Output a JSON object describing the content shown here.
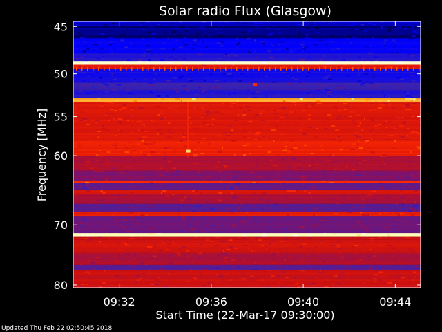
{
  "chart_data": {
    "type": "heatmap",
    "title": "Solar radio Flux (Glasgow)",
    "xlabel": "Start Time (22-Mar-17 09:30:00)",
    "ylabel": "Frequency [MHz]",
    "footer": "Updated Thu Feb 22 02:50:45 2018",
    "x_range_minutes": [
      0,
      15.1
    ],
    "x_ticks": [
      {
        "label": "09:32",
        "minutes": 2
      },
      {
        "label": "09:36",
        "minutes": 6
      },
      {
        "label": "09:40",
        "minutes": 10
      },
      {
        "label": "09:44",
        "minutes": 14
      }
    ],
    "y_range_mhz": [
      44.5,
      80.5
    ],
    "y_ticks": [
      {
        "label": "45",
        "mhz": 45
      },
      {
        "label": "50",
        "mhz": 50
      },
      {
        "label": "55",
        "mhz": 55
      },
      {
        "label": "60",
        "mhz": 60
      },
      {
        "label": "70",
        "mhz": 70
      },
      {
        "label": "80",
        "mhz": 80
      }
    ],
    "y_scale": "log",
    "colormap": [
      "#000030",
      "#0000ff",
      "#3a24b0",
      "#8a1060",
      "#cc1010",
      "#ff2a00",
      "#ff8800",
      "#ffff90",
      "#ffffff"
    ],
    "bands": [
      {
        "from_mhz": 44.5,
        "to_mhz": 45.0,
        "intensity": 0.1
      },
      {
        "from_mhz": 45.0,
        "to_mhz": 46.2,
        "intensity": 0.05
      },
      {
        "from_mhz": 46.2,
        "to_mhz": 47.8,
        "intensity": 0.13
      },
      {
        "from_mhz": 47.8,
        "to_mhz": 48.6,
        "intensity": 0.2
      },
      {
        "from_mhz": 48.6,
        "to_mhz": 49.0,
        "intensity": 0.96
      },
      {
        "from_mhz": 49.0,
        "to_mhz": 49.5,
        "intensity": 0.55
      },
      {
        "from_mhz": 49.5,
        "to_mhz": 51.0,
        "intensity": 0.17
      },
      {
        "from_mhz": 51.0,
        "to_mhz": 51.8,
        "intensity": 0.25
      },
      {
        "from_mhz": 51.8,
        "to_mhz": 52.8,
        "intensity": 0.2
      },
      {
        "from_mhz": 52.8,
        "to_mhz": 53.2,
        "intensity": 0.78
      },
      {
        "from_mhz": 53.2,
        "to_mhz": 58.0,
        "intensity": 0.54
      },
      {
        "from_mhz": 58.0,
        "to_mhz": 60.0,
        "intensity": 0.58
      },
      {
        "from_mhz": 60.0,
        "to_mhz": 62.0,
        "intensity": 0.45
      },
      {
        "from_mhz": 62.0,
        "to_mhz": 63.4,
        "intensity": 0.36
      },
      {
        "from_mhz": 63.4,
        "to_mhz": 63.8,
        "intensity": 0.62
      },
      {
        "from_mhz": 63.8,
        "to_mhz": 64.8,
        "intensity": 0.32
      },
      {
        "from_mhz": 64.8,
        "to_mhz": 65.3,
        "intensity": 0.55
      },
      {
        "from_mhz": 65.3,
        "to_mhz": 66.8,
        "intensity": 0.44
      },
      {
        "from_mhz": 66.8,
        "to_mhz": 68.0,
        "intensity": 0.3
      },
      {
        "from_mhz": 68.0,
        "to_mhz": 68.6,
        "intensity": 0.56
      },
      {
        "from_mhz": 68.6,
        "to_mhz": 71.3,
        "intensity": 0.33
      },
      {
        "from_mhz": 71.3,
        "to_mhz": 71.8,
        "intensity": 0.93
      },
      {
        "from_mhz": 71.8,
        "to_mhz": 72.3,
        "intensity": 0.5
      },
      {
        "from_mhz": 72.3,
        "to_mhz": 74.5,
        "intensity": 0.52
      },
      {
        "from_mhz": 74.5,
        "to_mhz": 76.5,
        "intensity": 0.44
      },
      {
        "from_mhz": 76.5,
        "to_mhz": 77.4,
        "intensity": 0.3
      },
      {
        "from_mhz": 77.4,
        "to_mhz": 80.5,
        "intensity": 0.5
      }
    ],
    "bright_spots": [
      {
        "minutes": 5.0,
        "mhz": 59.4,
        "intensity": 0.84
      },
      {
        "minutes": 7.9,
        "mhz": 51.2,
        "intensity": 0.62
      }
    ]
  }
}
